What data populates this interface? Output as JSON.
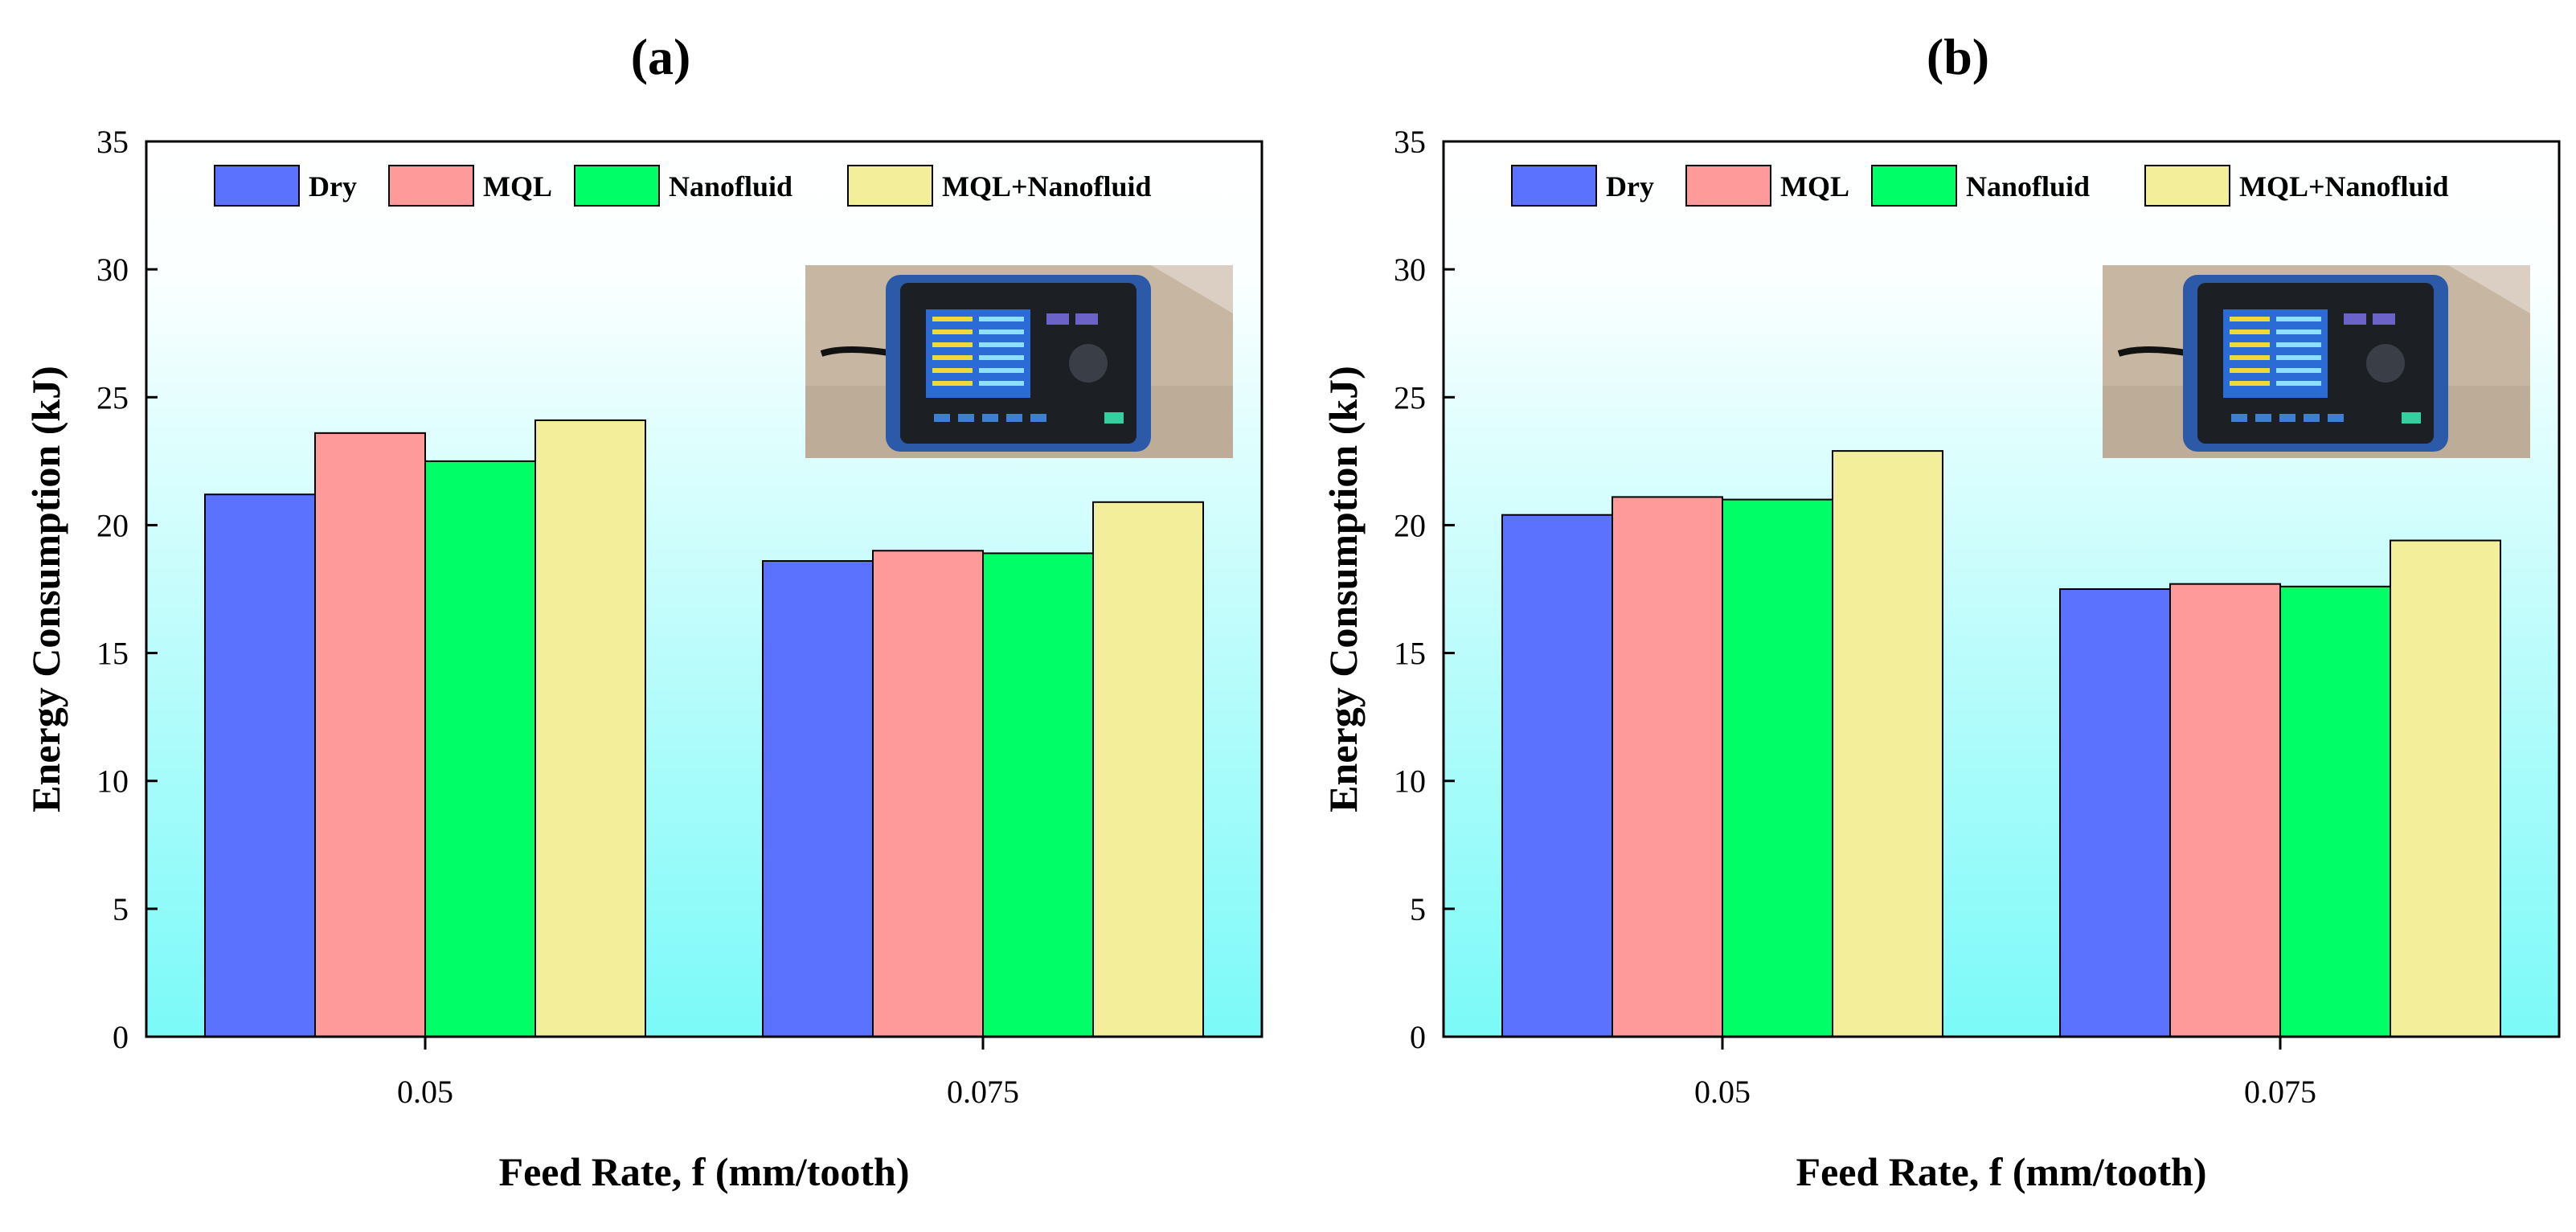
{
  "chart_data": [
    {
      "type": "bar",
      "title": "(a)",
      "xlabel": "Feed Rate, f (mm/tooth)",
      "ylabel": "Energy Consumption (kJ)",
      "ylim": [
        0,
        35
      ],
      "yticks": [
        "0",
        "5",
        "10",
        "15",
        "20",
        "25",
        "30",
        "35"
      ],
      "categories": [
        "0.05",
        "0.075"
      ],
      "legend_position": "top",
      "series": [
        {
          "name": "Dry",
          "color": "#5a72ff",
          "values": [
            21.2,
            18.6
          ]
        },
        {
          "name": "MQL",
          "color": "#ff9a9a",
          "values": [
            23.6,
            19.0
          ]
        },
        {
          "name": "Nanofluid",
          "color": "#00ff66",
          "values": [
            22.5,
            18.9
          ]
        },
        {
          "name": "MQL+Nanofluid",
          "color": "#f2ee9a",
          "values": [
            24.1,
            20.9
          ]
        }
      ],
      "inset_photo": "power-analyzer-photo"
    },
    {
      "type": "bar",
      "title": "(b)",
      "xlabel": "Feed Rate, f (mm/tooth)",
      "ylabel": "Energy Consumption (kJ)",
      "ylim": [
        0,
        35
      ],
      "yticks": [
        "0",
        "5",
        "10",
        "15",
        "20",
        "25",
        "30",
        "35"
      ],
      "categories": [
        "0.05",
        "0.075"
      ],
      "legend_position": "top",
      "series": [
        {
          "name": "Dry",
          "color": "#5a72ff",
          "values": [
            20.4,
            17.5
          ]
        },
        {
          "name": "MQL",
          "color": "#ff9a9a",
          "values": [
            21.1,
            17.7
          ]
        },
        {
          "name": "Nanofluid",
          "color": "#00ff66",
          "values": [
            21.0,
            17.6
          ]
        },
        {
          "name": "MQL+Nanofluid",
          "color": "#f2ee9a",
          "values": [
            22.9,
            19.4
          ]
        }
      ],
      "inset_photo": "power-analyzer-photo"
    }
  ]
}
